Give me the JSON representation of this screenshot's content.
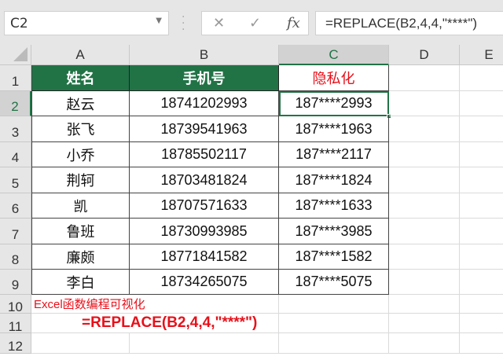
{
  "name_box": "C2",
  "formula_bar": {
    "cancel_icon": "✕",
    "enter_icon": "✓",
    "fx_label": "fx",
    "formula": "=REPLACE(B2,4,4,\"****\")"
  },
  "columns": [
    "A",
    "B",
    "C",
    "D",
    "E"
  ],
  "rows": [
    "1",
    "2",
    "3",
    "4",
    "5",
    "6",
    "7",
    "8",
    "9",
    "10",
    "11",
    "12"
  ],
  "headers": {
    "name": "姓名",
    "phone": "手机号",
    "masked": "隐私化"
  },
  "data": [
    {
      "name": "赵云",
      "phone": "18741202993",
      "masked": "187****2993"
    },
    {
      "name": "张飞",
      "phone": "18739541963",
      "masked": "187****1963"
    },
    {
      "name": "小乔",
      "phone": "18785502117",
      "masked": "187****2117"
    },
    {
      "name": "荆轲",
      "phone": "18703481824",
      "masked": "187****1824"
    },
    {
      "name": "凯",
      "phone": "18707571633",
      "masked": "187****1633"
    },
    {
      "name": "鲁班",
      "phone": "18730993985",
      "masked": "187****3985"
    },
    {
      "name": "廉颇",
      "phone": "18771841582",
      "masked": "187****1582"
    },
    {
      "name": "李白",
      "phone": "18734265075",
      "masked": "187****5075"
    }
  ],
  "note": "Excel函数编程可视化",
  "formula_note": "=REPLACE(B2,4,4,\"****\")",
  "colors": {
    "header_fill": "#217346",
    "accent_red": "#e8101a"
  }
}
